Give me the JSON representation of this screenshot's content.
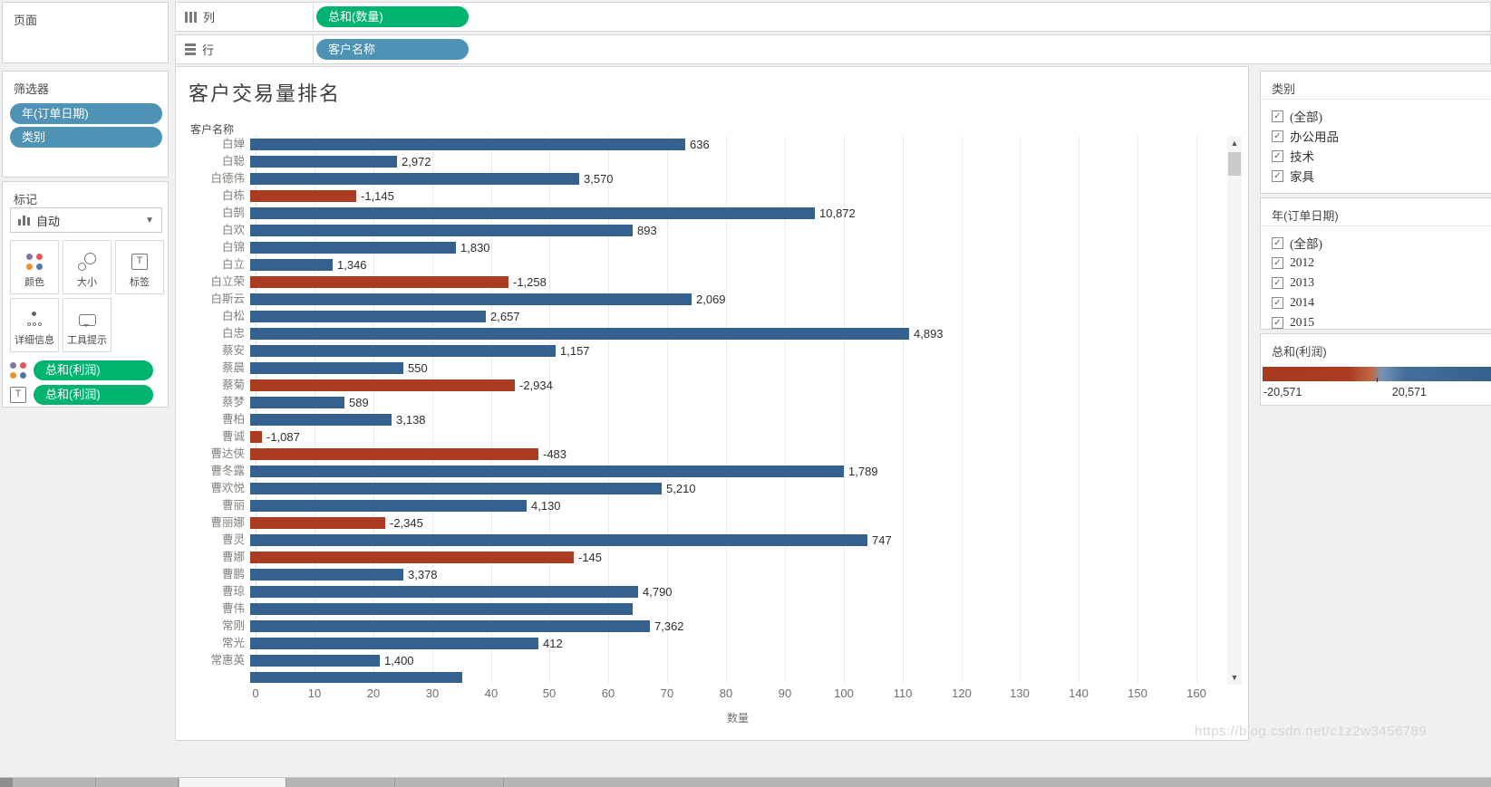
{
  "shelves": {
    "pages_label": "页面",
    "columns_label": "列",
    "rows_label": "行",
    "columns_pill": "总和(数量)",
    "rows_pill": "客户名称"
  },
  "filters": {
    "title": "筛选器",
    "pills": [
      "年(订单日期)",
      "类别"
    ]
  },
  "marks": {
    "title": "标记",
    "mark_type": "自动",
    "buttons": [
      {
        "id": "color",
        "label": "颜色"
      },
      {
        "id": "size",
        "label": "大小"
      },
      {
        "id": "label",
        "label": "标签"
      },
      {
        "id": "detail",
        "label": "详细信息"
      },
      {
        "id": "tooltip",
        "label": "工具提示"
      }
    ],
    "pills": [
      {
        "icon": "color",
        "label": "总和(利润)"
      },
      {
        "icon": "label",
        "label": "总和(利润)"
      }
    ]
  },
  "chart_data": {
    "type": "bar",
    "orientation": "horizontal",
    "title": "客户交易量排名",
    "row_header": "客户名称",
    "xlabel": "数量",
    "x_ticks": [
      "0",
      "10",
      "20",
      "30",
      "40",
      "50",
      "60",
      "70",
      "80",
      "90",
      "100",
      "110",
      "120",
      "130",
      "140",
      "150",
      "160"
    ],
    "xlim": [
      0,
      164
    ],
    "grid": true,
    "color_by": "总和(利润)",
    "colors": {
      "positive": "#34618d",
      "negative": "#ac3c21"
    },
    "bar_label_source": "总和(利润)",
    "rows": [
      {
        "name": "白婵",
        "quantity": 74,
        "label": "636",
        "negative": false
      },
      {
        "name": "白聪",
        "quantity": 25,
        "label": "2,972",
        "negative": false
      },
      {
        "name": "白德伟",
        "quantity": 56,
        "label": "3,570",
        "negative": false
      },
      {
        "name": "白栋",
        "quantity": 18,
        "label": "-1,145",
        "negative": true
      },
      {
        "name": "白鹄",
        "quantity": 96,
        "label": "10,872",
        "negative": false
      },
      {
        "name": "白欢",
        "quantity": 65,
        "label": "893",
        "negative": false
      },
      {
        "name": "白锦",
        "quantity": 35,
        "label": "1,830",
        "negative": false
      },
      {
        "name": "白立",
        "quantity": 14,
        "label": "1,346",
        "negative": false
      },
      {
        "name": "白立荣",
        "quantity": 44,
        "label": "-1,258",
        "negative": true
      },
      {
        "name": "白斯云",
        "quantity": 75,
        "label": "2,069",
        "negative": false
      },
      {
        "name": "白松",
        "quantity": 40,
        "label": "2,657",
        "negative": false
      },
      {
        "name": "白忠",
        "quantity": 112,
        "label": "4,893",
        "negative": false
      },
      {
        "name": "蔡安",
        "quantity": 52,
        "label": "1,157",
        "negative": false
      },
      {
        "name": "蔡晨",
        "quantity": 26,
        "label": "550",
        "negative": false
      },
      {
        "name": "蔡菊",
        "quantity": 45,
        "label": "-2,934",
        "negative": true
      },
      {
        "name": "蔡梦",
        "quantity": 16,
        "label": "589",
        "negative": false
      },
      {
        "name": "曹柏",
        "quantity": 24,
        "label": "3,138",
        "negative": false
      },
      {
        "name": "曹诚",
        "quantity": 2,
        "label": "-1,087",
        "negative": true
      },
      {
        "name": "曹达侠",
        "quantity": 49,
        "label": "-483",
        "negative": true
      },
      {
        "name": "曹冬露",
        "quantity": 101,
        "label": "1,789",
        "negative": false
      },
      {
        "name": "曹欢悦",
        "quantity": 70,
        "label": "5,210",
        "negative": false
      },
      {
        "name": "曹丽",
        "quantity": 47,
        "label": "4,130",
        "negative": false
      },
      {
        "name": "曹丽娜",
        "quantity": 23,
        "label": "-2,345",
        "negative": true
      },
      {
        "name": "曹灵",
        "quantity": 105,
        "label": "747",
        "negative": false
      },
      {
        "name": "曹娜",
        "quantity": 55,
        "label": "-145",
        "negative": true
      },
      {
        "name": "曹鹏",
        "quantity": 26,
        "label": "3,378",
        "negative": false
      },
      {
        "name": "曹琼",
        "quantity": 66,
        "label": "4,790",
        "negative": false
      },
      {
        "name": "曹伟",
        "quantity": 65,
        "label": "",
        "negative": false
      },
      {
        "name": "常刚",
        "quantity": 68,
        "label": "7,362",
        "negative": false
      },
      {
        "name": "常光",
        "quantity": 49,
        "label": "412",
        "negative": false
      },
      {
        "name": "常惠英",
        "quantity": 22,
        "label": "1,400",
        "negative": false
      }
    ],
    "partial_row": {
      "name": "",
      "quantity": 36,
      "label": "",
      "negative": false
    }
  },
  "legends": {
    "category": {
      "title": "类别",
      "items": [
        {
          "label": "(全部)",
          "checked": true
        },
        {
          "label": "办公用品",
          "checked": true
        },
        {
          "label": "技术",
          "checked": true
        },
        {
          "label": "家具",
          "checked": true
        }
      ]
    },
    "year": {
      "title": "年(订单日期)",
      "items": [
        {
          "label": "(全部)",
          "checked": true
        },
        {
          "label": "2012",
          "checked": true
        },
        {
          "label": "2013",
          "checked": true
        },
        {
          "label": "2014",
          "checked": true
        },
        {
          "label": "2015",
          "checked": true
        }
      ]
    },
    "profit": {
      "title": "总和(利润)",
      "min_label": "-20,571",
      "max_label": "20,571"
    }
  },
  "icons": {
    "check": "✓",
    "dropdown_arrow": "▼",
    "scroll_up": "▲",
    "scroll_down": "▼",
    "label_glyph": "T"
  },
  "watermark": "https://blog.csdn.net/c1z2w3456789"
}
